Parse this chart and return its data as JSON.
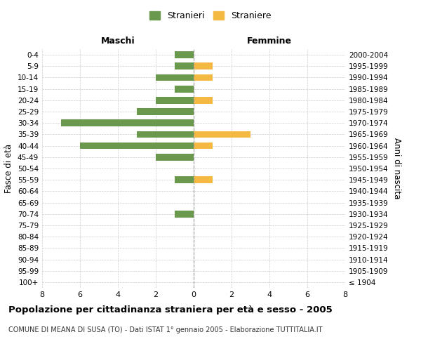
{
  "age_groups": [
    "100+",
    "95-99",
    "90-94",
    "85-89",
    "80-84",
    "75-79",
    "70-74",
    "65-69",
    "60-64",
    "55-59",
    "50-54",
    "45-49",
    "40-44",
    "35-39",
    "30-34",
    "25-29",
    "20-24",
    "15-19",
    "10-14",
    "5-9",
    "0-4"
  ],
  "birth_years": [
    "≤ 1904",
    "1905-1909",
    "1910-1914",
    "1915-1919",
    "1920-1924",
    "1925-1929",
    "1930-1934",
    "1935-1939",
    "1940-1944",
    "1945-1949",
    "1950-1954",
    "1955-1959",
    "1960-1964",
    "1965-1969",
    "1970-1974",
    "1975-1979",
    "1980-1984",
    "1985-1989",
    "1990-1994",
    "1995-1999",
    "2000-2004"
  ],
  "maschi_stranieri": [
    0,
    0,
    0,
    0,
    0,
    0,
    1,
    0,
    0,
    1,
    0,
    2,
    6,
    3,
    7,
    3,
    2,
    1,
    2,
    1,
    1
  ],
  "femmine_straniere": [
    0,
    0,
    0,
    0,
    0,
    0,
    0,
    0,
    0,
    1,
    0,
    0,
    1,
    3,
    0,
    0,
    1,
    0,
    1,
    1,
    0
  ],
  "color_maschi": "#6a994e",
  "color_femmine": "#f4b942",
  "xlim": 8,
  "title": "Popolazione per cittadinanza straniera per età e sesso - 2005",
  "subtitle": "COMUNE DI MEANA DI SUSA (TO) - Dati ISTAT 1° gennaio 2005 - Elaborazione TUTTITALIA.IT",
  "ylabel_left": "Fasce di età",
  "ylabel_right": "Anni di nascita",
  "label_maschi": "Maschi",
  "label_femmine": "Femmine",
  "legend_maschi": "Stranieri",
  "legend_femmine": "Straniere",
  "background_color": "#ffffff",
  "grid_color": "#cccccc"
}
